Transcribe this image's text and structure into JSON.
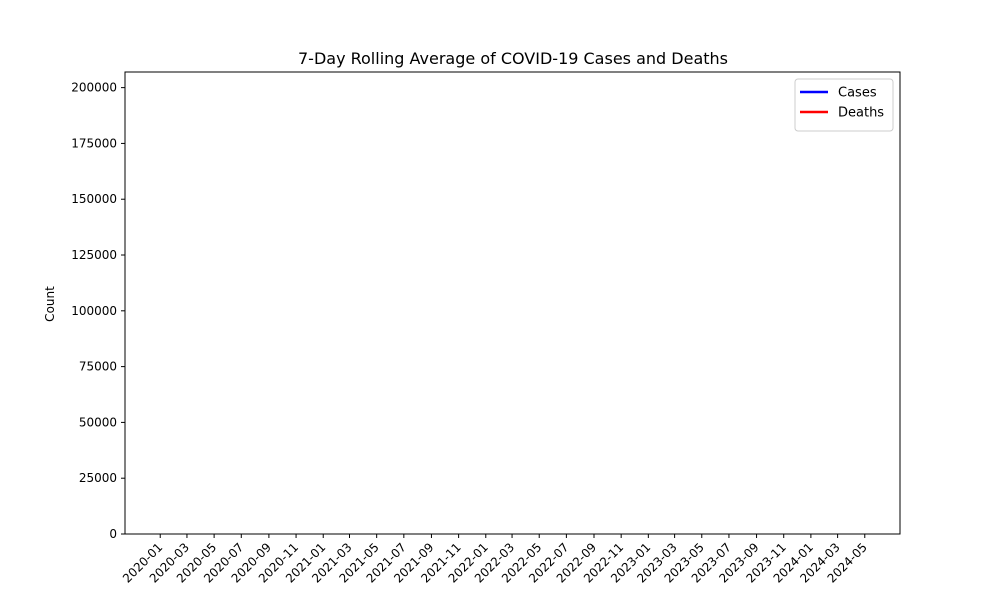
{
  "chart_data": {
    "type": "line",
    "title": "7-Day Rolling Average of COVID-19 Cases and Deaths",
    "xlabel": "",
    "ylabel": "Count",
    "xlim": [
      "2020-01",
      "2024-05"
    ],
    "ylim": [
      0,
      207000
    ],
    "x_ticks": [
      "2020-01",
      "2020-03",
      "2020-05",
      "2020-07",
      "2020-09",
      "2020-11",
      "2021-01",
      "2021-03",
      "2021-05",
      "2021-07",
      "2021-09",
      "2021-11",
      "2022-01",
      "2022-03",
      "2022-05",
      "2022-07",
      "2022-09",
      "2022-11",
      "2023-01",
      "2023-03",
      "2023-05",
      "2023-07",
      "2023-09",
      "2023-11",
      "2024-01",
      "2024-03",
      "2024-05"
    ],
    "y_ticks": [
      0,
      25000,
      50000,
      75000,
      100000,
      125000,
      150000,
      175000,
      200000
    ],
    "grid": false,
    "legend_position": "top-right",
    "series": [
      {
        "name": "Cases",
        "color": "#0000ff",
        "x": [],
        "values": []
      },
      {
        "name": "Deaths",
        "color": "#ff0000",
        "x": [],
        "values": []
      }
    ]
  }
}
